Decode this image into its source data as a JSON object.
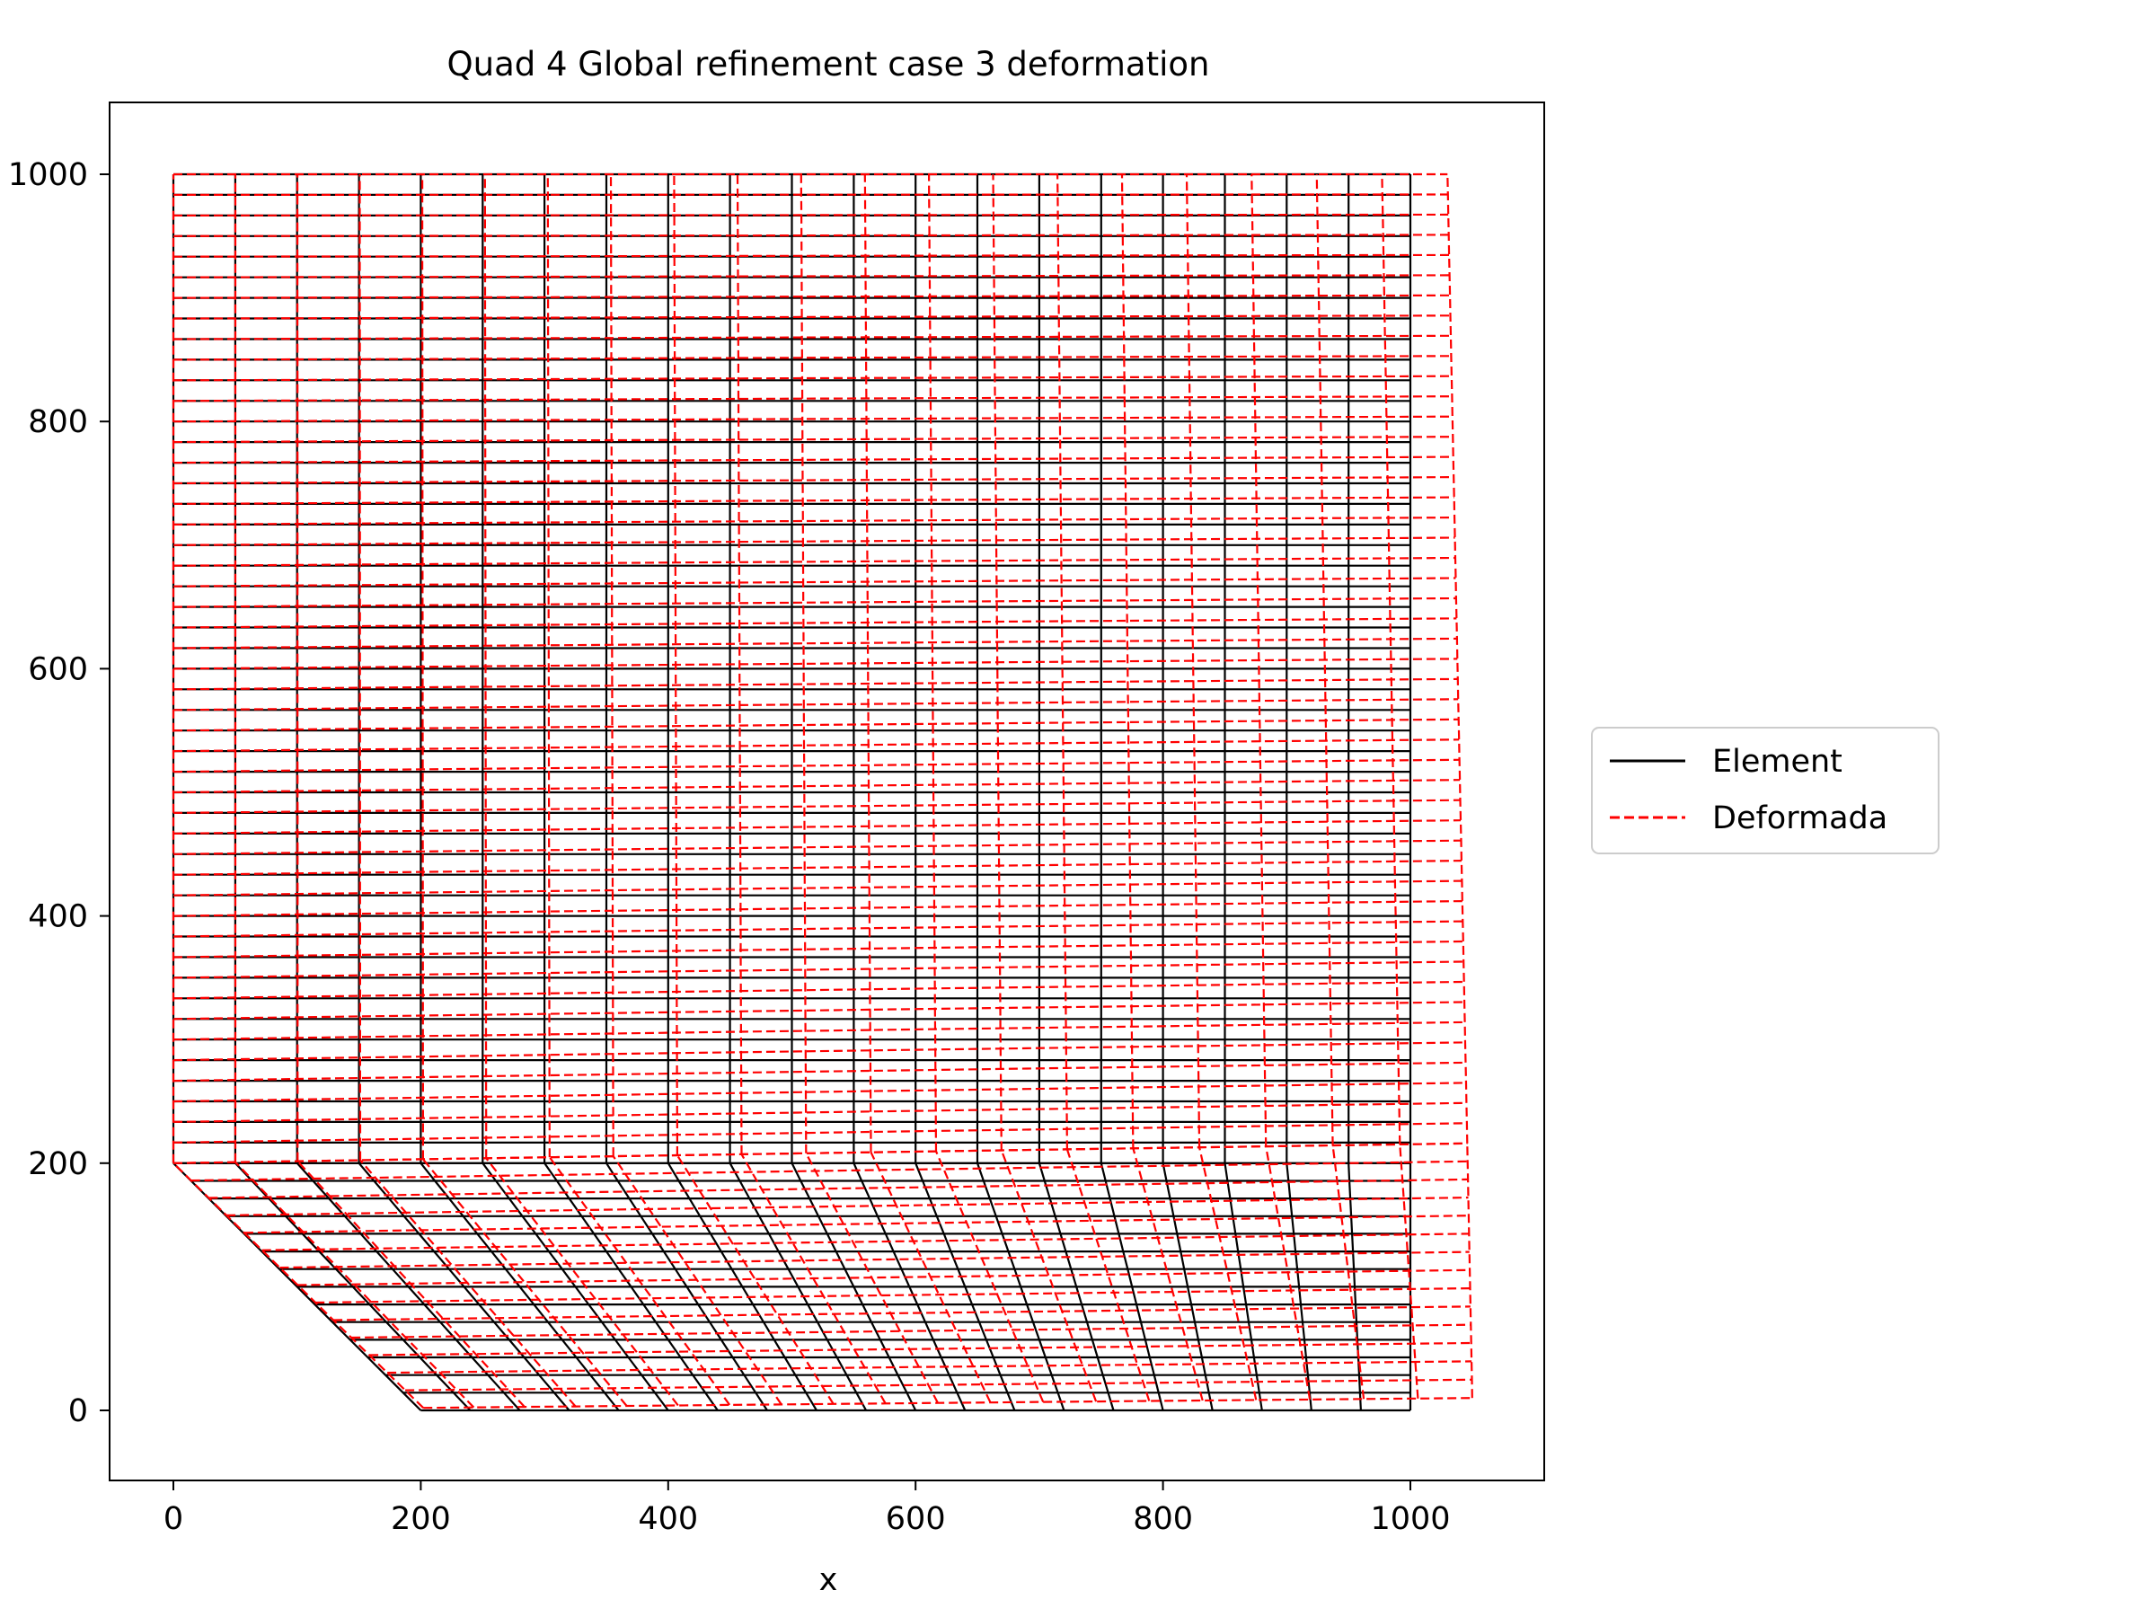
{
  "chart_data": {
    "type": "line",
    "title": "Quad 4 Global refinement case 3 deformation",
    "xlabel": "x",
    "ylabel": "",
    "xlim": [
      -52,
      1103
    ],
    "ylim": [
      -52,
      1060
    ],
    "xticks": [
      0,
      200,
      400,
      600,
      800,
      1000
    ],
    "yticks": [
      0,
      200,
      400,
      600,
      800,
      1000
    ],
    "xtick_labels": [
      "0",
      "200",
      "400",
      "600",
      "800",
      "1000"
    ],
    "ytick_labels": [
      "0",
      "200",
      "400",
      "600",
      "800",
      "1000"
    ],
    "grid": false,
    "legend_position": "center-right, outside plot",
    "series": [
      {
        "name": "Element",
        "color": "#000000",
        "line_style": "solid",
        "mesh": {
          "nodes_along_boundary": 21,
          "rows_lower_region": 14,
          "rows_upper_region": 48,
          "outline": [
            [
              0,
              200
            ],
            [
              200,
              0
            ],
            [
              1000,
              0
            ],
            [
              1000,
              1000
            ],
            [
              0,
              1000
            ]
          ]
        }
      },
      {
        "name": "Deformada",
        "color": "#ff0000",
        "line_style": "dashed",
        "max_x_displacement_top_right": 30,
        "max_x_displacement_bottom_right": 50,
        "max_y_displacement": 20
      }
    ]
  }
}
